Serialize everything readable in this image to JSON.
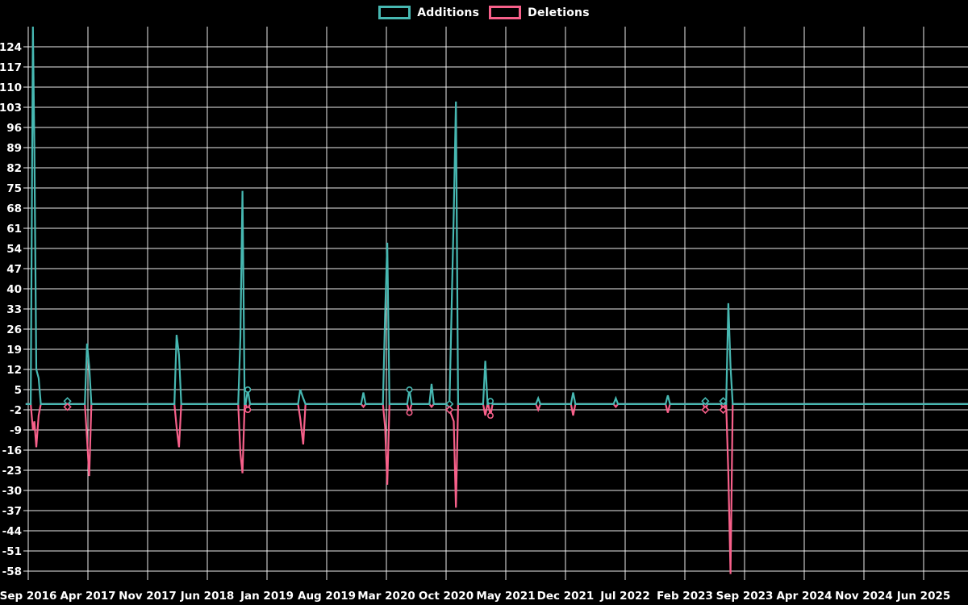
{
  "chart_data": {
    "type": "line",
    "title": "",
    "description_visible": false,
    "background_color": "#000000",
    "grid": {
      "visible": true,
      "color": "#ffffff"
    },
    "legend_position": "top-center",
    "legend": [
      {
        "label": "Additions",
        "color": "#47b8b2"
      },
      {
        "label": "Deletions",
        "color": "#f7608a"
      }
    ],
    "x_axis": {
      "tick_labels": [
        "Sep 2016",
        "Apr 2017",
        "Nov 2017",
        "Jun 2018",
        "Jan 2019",
        "Aug 2019",
        "Mar 2020",
        "Oct 2020",
        "May 2021",
        "Dec 2021",
        "Jul 2022",
        "Feb 2023",
        "Sep 2023",
        "Apr 2024",
        "Nov 2024",
        "Jun 2025"
      ],
      "tick_interval_months": 7
    },
    "y_axis": {
      "tick_labels": [
        "124",
        "117",
        "110",
        "103",
        "96",
        "89",
        "82",
        "75",
        "68",
        "61",
        "54",
        "47",
        "40",
        "33",
        "26",
        "19",
        "12",
        "5",
        "-2",
        "-9",
        "-16",
        "-23",
        "-30",
        "-37",
        "-44",
        "-51",
        "-58"
      ],
      "max": 124,
      "min": -58,
      "step": 7
    },
    "baseline_value": 0,
    "series": [
      {
        "name": "Additions",
        "color": "#47b8b2"
      },
      {
        "name": "Deletions",
        "color": "#f7608a"
      }
    ],
    "events": [
      {
        "t": 0.55,
        "date": "2016-09",
        "additions": 131,
        "deletions": -9,
        "note": "additions spike clipped at plot top"
      },
      {
        "t": 0.72,
        "date": "2016-09",
        "additions": 89,
        "deletions": -6
      },
      {
        "t": 0.95,
        "date": "2016-10",
        "additions": 12,
        "deletions": -15
      },
      {
        "t": 1.22,
        "date": "2016-10",
        "additions": 9,
        "deletions": -4
      },
      {
        "t": 4.6,
        "date": "2017-01",
        "additions": 1,
        "deletions": -1,
        "marker": "diamond"
      },
      {
        "t": 6.9,
        "date": "2017-03",
        "additions": 21,
        "deletions": -12
      },
      {
        "t": 7.15,
        "date": "2017-04",
        "additions": 13,
        "deletions": -25
      },
      {
        "t": 17.4,
        "date": "2018-02",
        "additions": 24,
        "deletions": -8
      },
      {
        "t": 17.68,
        "date": "2018-02",
        "additions": 17,
        "deletions": -15
      },
      {
        "t": 24.88,
        "date": "2018-09",
        "additions": 23,
        "deletions": -17
      },
      {
        "t": 25.12,
        "date": "2018-10",
        "additions": 74,
        "deletions": -24
      },
      {
        "t": 25.75,
        "date": "2018-10",
        "additions": 5,
        "deletions": -2,
        "marker": "circle"
      },
      {
        "t": 31.9,
        "date": "2019-04",
        "additions": 5,
        "deletions": -5
      },
      {
        "t": 32.25,
        "date": "2019-05",
        "additions": 2,
        "deletions": -14
      },
      {
        "t": 39.3,
        "date": "2019-12",
        "additions": 4,
        "deletions": -1
      },
      {
        "t": 41.85,
        "date": "2020-02",
        "additions": 31,
        "deletions": -8
      },
      {
        "t": 42.1,
        "date": "2020-03",
        "additions": 56,
        "deletions": -28
      },
      {
        "t": 44.7,
        "date": "2020-05",
        "additions": 5,
        "deletions": -3,
        "marker": "circle"
      },
      {
        "t": 47.3,
        "date": "2020-08",
        "additions": 7,
        "deletions": -1
      },
      {
        "t": 49.4,
        "date": "2020-10",
        "additions": 0,
        "deletions": -2,
        "marker": "diamond"
      },
      {
        "t": 49.9,
        "date": "2020-10",
        "additions": 66,
        "deletions": -6
      },
      {
        "t": 50.15,
        "date": "2020-11",
        "additions": 105,
        "deletions": -36
      },
      {
        "t": 53.6,
        "date": "2021-02",
        "additions": 15,
        "deletions": -4
      },
      {
        "t": 54.2,
        "date": "2021-03",
        "additions": 1,
        "deletions": -4,
        "marker": "circle"
      },
      {
        "t": 59.8,
        "date": "2021-08",
        "additions": 2,
        "deletions": -2
      },
      {
        "t": 63.9,
        "date": "2021-12",
        "additions": 4,
        "deletions": -4
      },
      {
        "t": 68.9,
        "date": "2022-06",
        "additions": 2,
        "deletions": -1
      },
      {
        "t": 75.0,
        "date": "2022-12",
        "additions": 3,
        "deletions": -3
      },
      {
        "t": 79.4,
        "date": "2023-04",
        "additions": 1,
        "deletions": -2,
        "marker": "diamond"
      },
      {
        "t": 81.5,
        "date": "2023-06",
        "additions": 1,
        "deletions": -2,
        "marker": "diamond"
      },
      {
        "t": 82.1,
        "date": "2023-07",
        "additions": 35,
        "deletions": -24
      },
      {
        "t": 82.35,
        "date": "2023-07",
        "additions": 13,
        "deletions": -59,
        "note": "deletions spike clipped at plot bottom"
      }
    ]
  }
}
